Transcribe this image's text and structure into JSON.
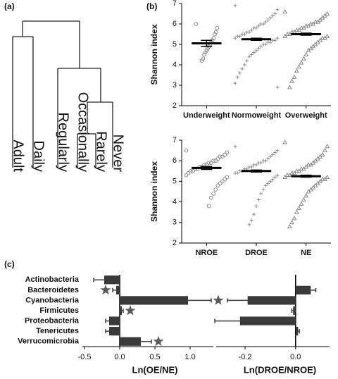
{
  "dendrogram": {
    "panel_label": "(a)",
    "leaves": [
      "Adult",
      "Daily",
      "Regularly",
      "Occasionally",
      "Rarely",
      "Never"
    ]
  },
  "chart_data": [
    {
      "type": "dot",
      "panel_label": "(b)",
      "ylabel": "Shannon index",
      "categories": [
        "Underweight",
        "Normoweight",
        "Overweight"
      ],
      "markers": [
        "circle",
        "plus",
        "triangle"
      ],
      "means": [
        5.05,
        5.25,
        5.5
      ],
      "errors": [
        0.15,
        0.05,
        0.05
      ],
      "points": [
        [
          6.0,
          5.8,
          5.6,
          5.5,
          5.3,
          5.2,
          5.1,
          5.0,
          4.9,
          4.8,
          4.7,
          4.6,
          4.5,
          4.3,
          4.2
        ],
        [
          6.9,
          6.7,
          6.5,
          6.4,
          6.3,
          6.2,
          6.1,
          6.0,
          6.0,
          5.9,
          5.8,
          5.8,
          5.7,
          5.6,
          5.6,
          5.5,
          5.5,
          5.4,
          5.4,
          5.3,
          5.3,
          5.2,
          5.2,
          5.1,
          5.1,
          5.0,
          5.0,
          4.9,
          4.8,
          4.7,
          4.6,
          4.5,
          4.4,
          4.2,
          4.0,
          3.8,
          3.6,
          3.4,
          3.1,
          2.9
        ],
        [
          6.6,
          6.5,
          6.4,
          6.3,
          6.2,
          6.1,
          6.1,
          6.0,
          6.0,
          5.9,
          5.9,
          5.8,
          5.8,
          5.7,
          5.7,
          5.6,
          5.6,
          5.5,
          5.5,
          5.4,
          5.4,
          5.3,
          5.3,
          5.2,
          5.1,
          5.0,
          4.9,
          4.8,
          4.7,
          4.5,
          4.3,
          4.1,
          3.9,
          3.7,
          3.4,
          3.2,
          2.9
        ]
      ],
      "ylim": [
        2,
        7
      ],
      "yticks": [
        2,
        3,
        4,
        5,
        6,
        7
      ]
    },
    {
      "type": "dot",
      "ylabel": "Shannon index",
      "categories": [
        "NROE",
        "DROE",
        "NE"
      ],
      "markers": [
        "circle",
        "plus",
        "triangle"
      ],
      "means": [
        5.65,
        5.5,
        5.25
      ],
      "errors": [
        0.07,
        0.05,
        0.05
      ],
      "points": [
        [
          6.5,
          6.4,
          6.3,
          6.2,
          6.2,
          6.1,
          6.0,
          6.0,
          5.9,
          5.9,
          5.8,
          5.8,
          5.7,
          5.7,
          5.6,
          5.6,
          5.5,
          5.5,
          5.4,
          5.3,
          5.2,
          5.1,
          5.0,
          4.9,
          4.8,
          4.6,
          4.4,
          4.2,
          3.8
        ],
        [
          6.7,
          6.5,
          6.4,
          6.3,
          6.2,
          6.1,
          6.0,
          6.0,
          5.9,
          5.9,
          5.8,
          5.8,
          5.7,
          5.7,
          5.6,
          5.6,
          5.5,
          5.5,
          5.4,
          5.4,
          5.3,
          5.2,
          5.1,
          5.0,
          4.9,
          4.8,
          4.6,
          4.4,
          4.1,
          3.8,
          3.4,
          3.1,
          2.9
        ],
        [
          6.9,
          6.7,
          6.5,
          6.3,
          6.2,
          6.1,
          6.0,
          5.9,
          5.8,
          5.8,
          5.7,
          5.6,
          5.6,
          5.5,
          5.5,
          5.4,
          5.4,
          5.3,
          5.3,
          5.2,
          5.2,
          5.1,
          5.1,
          5.0,
          4.9,
          4.8,
          4.7,
          4.6,
          4.5,
          4.3,
          4.1,
          3.9,
          3.7,
          3.5,
          3.2,
          3.0,
          2.8
        ]
      ],
      "ylim": [
        2,
        7
      ],
      "yticks": [
        2,
        3,
        4,
        5,
        6,
        7
      ]
    },
    {
      "type": "hbar",
      "panel_label": "(c)",
      "xlabel": "Ln(OE/NE)",
      "color": "#3a3a3a",
      "categories": [
        "Actinobacteria",
        "Bacteroidetes",
        "Cyanobacteria",
        "Firmicutes",
        "Proteobacteria",
        "Tenericutes",
        "Verrucomicrobia"
      ],
      "values": [
        -0.22,
        -0.05,
        0.97,
        0.03,
        -0.15,
        -0.15,
        0.3
      ],
      "errors": [
        0.15,
        0.05,
        0.33,
        0.02,
        0.05,
        0.05,
        0.15
      ],
      "significant": [
        false,
        true,
        true,
        true,
        false,
        false,
        true
      ],
      "xlim": [
        -0.55,
        1.35
      ],
      "xticks": [
        -0.5,
        {
          "value": 0,
          "label": "0.0"
        },
        0.5,
        {
          "value": 1,
          "label": "1.0"
        }
      ]
    },
    {
      "type": "hbar",
      "xlabel": "Ln(DROE/NROE)",
      "color": "#3a3a3a",
      "values": [
        0,
        0.06,
        -0.19,
        -0.01,
        -0.22,
        0.01,
        0
      ],
      "errors": [
        0,
        0.02,
        0.08,
        0.005,
        0.1,
        0.005,
        0
      ],
      "xlim": [
        -0.32,
        0.14
      ],
      "xticks": [
        {
          "value": -0.2,
          "label": "-0.2"
        },
        {
          "value": 0,
          "label": "0.0"
        }
      ]
    }
  ]
}
